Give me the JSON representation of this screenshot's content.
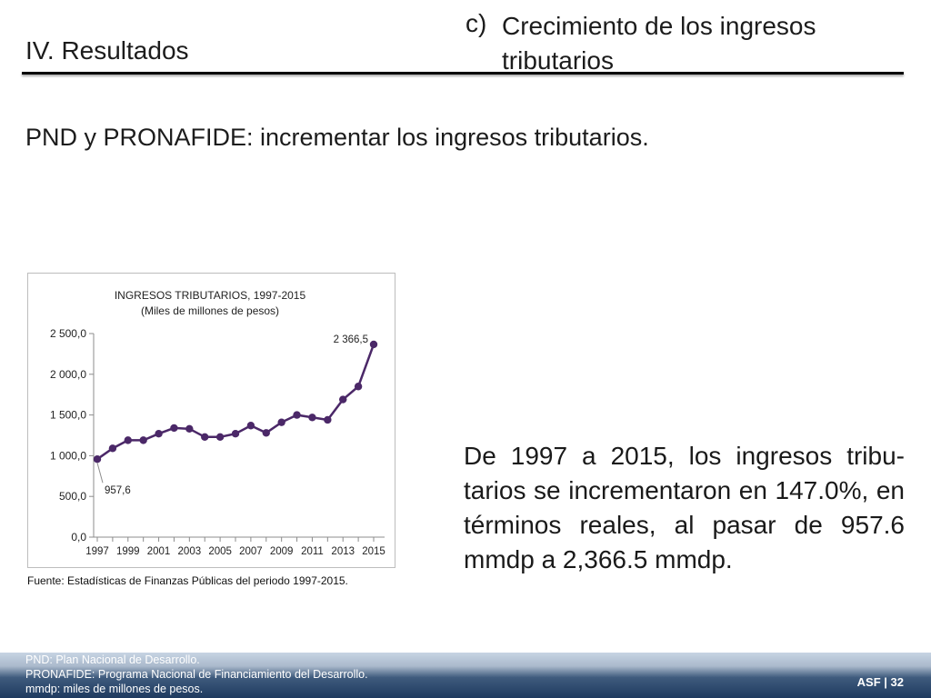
{
  "header": {
    "section": "IV. Resultados",
    "subtitle_letter": "c)",
    "subtitle": "Crecimiento de los ingresos tributarios"
  },
  "objective": "PND y PRONAFIDE: incrementar los ingresos tributarios.",
  "chart_data": {
    "type": "line",
    "title": "INGRESOS TRIBUTARIOS, 1997-2015",
    "subtitle": "(Miles de millones de pesos)",
    "xlabel": "",
    "ylabel": "",
    "x": [
      1997,
      1998,
      1999,
      2000,
      2001,
      2002,
      2003,
      2004,
      2005,
      2006,
      2007,
      2008,
      2009,
      2010,
      2011,
      2012,
      2013,
      2014,
      2015
    ],
    "x_tick_labels": [
      "1997",
      "1999",
      "2001",
      "2003",
      "2005",
      "2007",
      "2009",
      "2011",
      "2013",
      "2015"
    ],
    "series": [
      {
        "values": [
          957.6,
          1090,
          1190,
          1190,
          1270,
          1340,
          1330,
          1230,
          1230,
          1270,
          1370,
          1280,
          1410,
          1500,
          1470,
          1440,
          1690,
          1850,
          2366.5
        ]
      }
    ],
    "ylim": [
      0,
      2500
    ],
    "y_ticks": [
      0,
      500,
      1000,
      1500,
      2000,
      2500
    ],
    "y_tick_labels": [
      "0,0",
      "500,0",
      "1 000,0",
      "1 500,0",
      "2 000,0",
      "2 500,0"
    ],
    "data_labels": [
      {
        "index": 0,
        "text": "957,6"
      },
      {
        "index": 18,
        "text": "2 366,5"
      }
    ],
    "grid": false,
    "line_color": "#4b2868"
  },
  "source_note": "Fuente: Estadísticas de Finanzas Públicas del periodo 1997-2015.",
  "summary": "De 1997 a 2015, los ingresos tribu-tarios se incrementaron en 147.0%, en términos reales, al pasar de 957.6 mmdp a 2,366.5 mmdp.",
  "footer": {
    "notes": [
      "PND: Plan Nacional de Desarrollo.",
      "PRONAFIDE: Programa Nacional de Financiamiento del Desarrollo.",
      "mmdp: miles de millones de pesos."
    ],
    "page_label": "ASF | 32"
  }
}
